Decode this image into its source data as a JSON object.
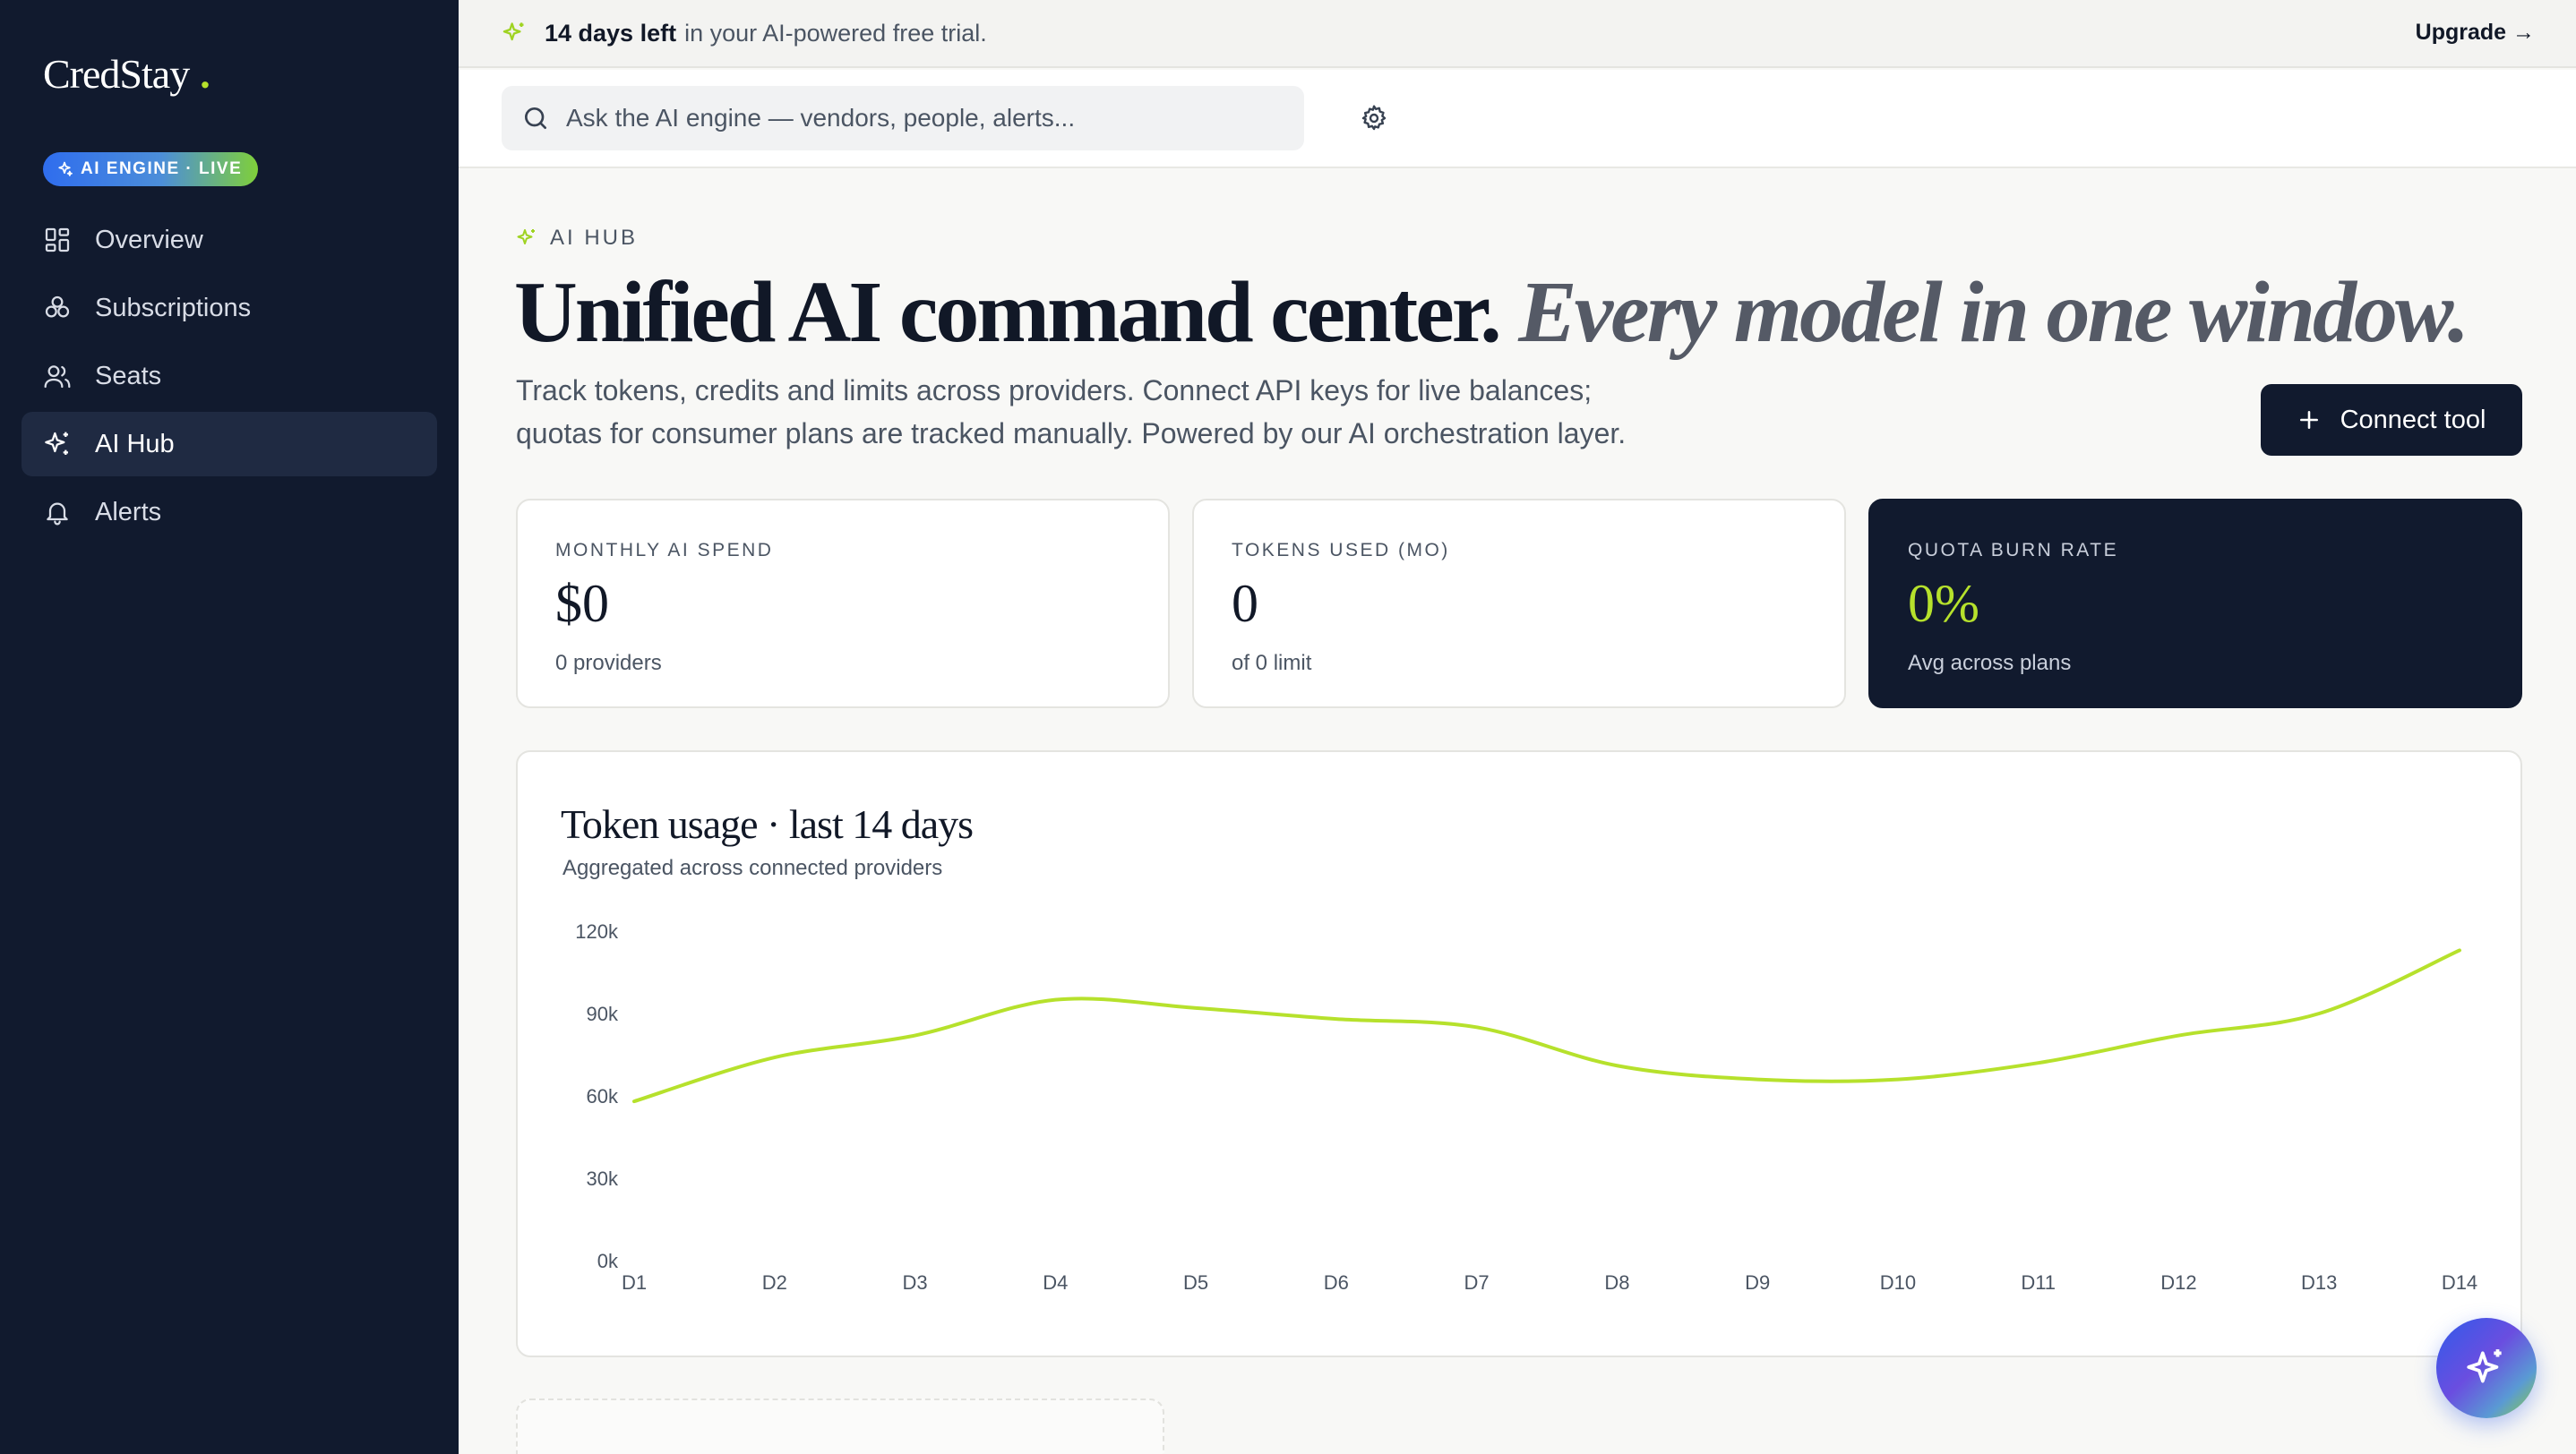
{
  "brand": {
    "name": "CredStay",
    "dot": ".",
    "accent": "#b6e12c",
    "sidebar_bg": "#111a2e"
  },
  "sidebar": {
    "badge": "AI ENGINE · LIVE",
    "items": [
      {
        "label": "Overview",
        "icon": "grid-icon"
      },
      {
        "label": "Subscriptions",
        "icon": "circles-icon"
      },
      {
        "label": "Seats",
        "icon": "users-icon"
      },
      {
        "label": "AI Hub",
        "icon": "sparkle-icon",
        "active": true
      },
      {
        "label": "Alerts",
        "icon": "bell-icon"
      }
    ]
  },
  "trial": {
    "strong": "14 days left",
    "rest": "in your AI-powered free trial.",
    "upgrade": "Upgrade →"
  },
  "search": {
    "placeholder": "Ask the AI engine — vendors, people, alerts..."
  },
  "page": {
    "eyebrow": "AI HUB",
    "headline_main": "Unified AI command center.",
    "headline_em": "Every model in one window.",
    "lead_line1": "Track tokens, credits and limits across providers. Connect API keys for live balances;",
    "lead_line2": "quotas for consumer plans are tracked manually. Powered by our AI orchestration layer.",
    "connect_label": "Connect tool"
  },
  "stats": [
    {
      "label": "MONTHLY AI SPEND",
      "value": "$0",
      "sub": "0 providers"
    },
    {
      "label": "TOKENS USED (MO)",
      "value": "0",
      "sub": "of 0 limit"
    },
    {
      "label": "QUOTA BURN RATE",
      "value": "0%",
      "sub": "Avg across plans"
    }
  ],
  "chart": {
    "title": "Token usage · last 14 days",
    "subtitle": "Aggregated across connected providers"
  },
  "chart_data": {
    "type": "line",
    "categories": [
      "D1",
      "D2",
      "D3",
      "D4",
      "D5",
      "D6",
      "D7",
      "D8",
      "D9",
      "D10",
      "D11",
      "D12",
      "D13",
      "D14"
    ],
    "series": [
      {
        "values": [
          58000,
          74000,
          82000,
          95000,
          92000,
          88000,
          85000,
          71000,
          66000,
          66000,
          72000,
          82000,
          90000,
          113000
        ],
        "color": "#b6e12c"
      }
    ],
    "y_ticks": [
      "0k",
      "30k",
      "60k",
      "90k",
      "120k"
    ],
    "ylim": [
      0,
      120000
    ],
    "grid": false,
    "title": "Token usage · last 14 days",
    "xlabel": "",
    "ylabel": ""
  }
}
